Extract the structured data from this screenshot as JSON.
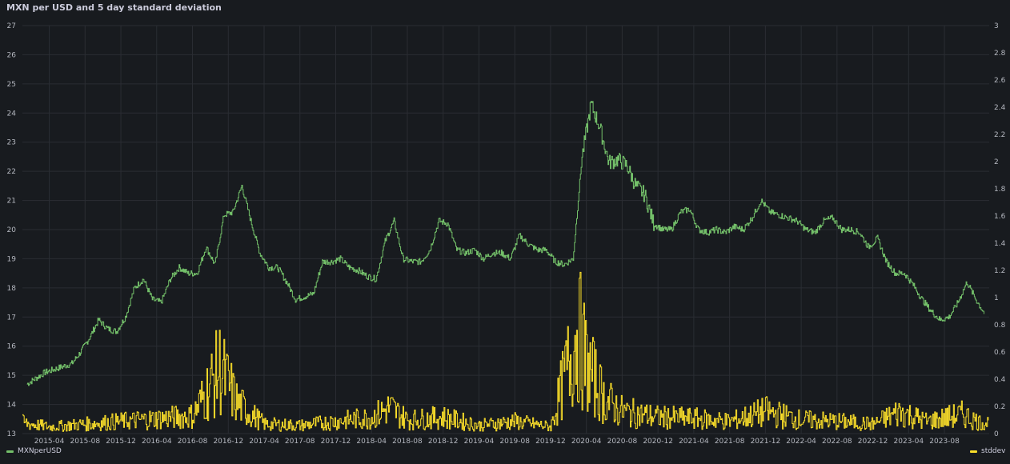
{
  "panel": {
    "title": "MXN per USD and 5 day standard deviation"
  },
  "legend": {
    "left_label": "MXNperUSD",
    "right_label": "stddev"
  },
  "colors": {
    "mxn": "#73bf69",
    "stddev": "#fade2a",
    "grid": "#2a2d33",
    "tick": "#b5b8c0"
  },
  "chart_data": {
    "type": "line",
    "title": "MXN per USD and 5 day standard deviation",
    "x_range": [
      "2015-01",
      "2023-12"
    ],
    "y_left": {
      "min": 13,
      "max": 27,
      "ticks": [
        13,
        14,
        15,
        16,
        17,
        18,
        19,
        20,
        21,
        22,
        23,
        24,
        25,
        26,
        27
      ]
    },
    "y_right": {
      "min": 0,
      "max": 3,
      "ticks": [
        "0",
        "0.2",
        "0.4",
        "0.6",
        "0.8",
        "1",
        "1.2",
        "1.4",
        "1.6",
        "1.8",
        "2",
        "2.2",
        "2.4",
        "2.6",
        "2.8",
        "3"
      ]
    },
    "x_ticks": [
      "2015-04",
      "2015-08",
      "2015-12",
      "2016-04",
      "2016-08",
      "2016-12",
      "2017-04",
      "2017-08",
      "2017-12",
      "2018-04",
      "2018-08",
      "2018-12",
      "2019-04",
      "2019-08",
      "2019-12",
      "2020-04",
      "2020-08",
      "2020-12",
      "2021-04",
      "2021-08",
      "2021-12",
      "2022-04",
      "2022-08",
      "2022-12",
      "2023-04",
      "2023-08"
    ],
    "grid": true,
    "legend_position": "bottom",
    "series": [
      {
        "name": "MXNperUSD",
        "axis": "left",
        "points": [
          [
            "2015-01",
            14.7
          ],
          [
            "2015-02",
            14.9
          ],
          [
            "2015-03",
            15.1
          ],
          [
            "2015-04",
            15.2
          ],
          [
            "2015-05",
            15.3
          ],
          [
            "2015-06",
            15.4
          ],
          [
            "2015-07",
            15.8
          ],
          [
            "2015-08",
            16.3
          ],
          [
            "2015-09",
            16.9
          ],
          [
            "2015-10",
            16.6
          ],
          [
            "2015-11",
            16.5
          ],
          [
            "2015-12",
            17.0
          ],
          [
            "2016-01",
            18.0
          ],
          [
            "2016-02",
            18.3
          ],
          [
            "2016-03",
            17.6
          ],
          [
            "2016-04",
            17.5
          ],
          [
            "2016-05",
            18.3
          ],
          [
            "2016-06",
            18.7
          ],
          [
            "2016-07",
            18.5
          ],
          [
            "2016-08",
            18.5
          ],
          [
            "2016-09",
            19.4
          ],
          [
            "2016-10",
            18.8
          ],
          [
            "2016-11",
            20.5
          ],
          [
            "2016-12",
            20.6
          ],
          [
            "2017-01",
            21.5
          ],
          [
            "2017-02",
            20.3
          ],
          [
            "2017-03",
            19.2
          ],
          [
            "2017-04",
            18.7
          ],
          [
            "2017-05",
            18.7
          ],
          [
            "2017-06",
            18.2
          ],
          [
            "2017-07",
            17.6
          ],
          [
            "2017-08",
            17.7
          ],
          [
            "2017-09",
            17.8
          ],
          [
            "2017-10",
            18.9
          ],
          [
            "2017-11",
            18.9
          ],
          [
            "2017-12",
            19.0
          ],
          [
            "2018-01",
            18.7
          ],
          [
            "2018-02",
            18.6
          ],
          [
            "2018-03",
            18.4
          ],
          [
            "2018-04",
            18.3
          ],
          [
            "2018-05",
            19.6
          ],
          [
            "2018-06",
            20.3
          ],
          [
            "2018-07",
            19.0
          ],
          [
            "2018-08",
            18.9
          ],
          [
            "2018-09",
            18.9
          ],
          [
            "2018-10",
            19.3
          ],
          [
            "2018-11",
            20.3
          ],
          [
            "2018-12",
            20.2
          ],
          [
            "2019-01",
            19.3
          ],
          [
            "2019-02",
            19.2
          ],
          [
            "2019-03",
            19.3
          ],
          [
            "2019-04",
            19.0
          ],
          [
            "2019-05",
            19.2
          ],
          [
            "2019-06",
            19.2
          ],
          [
            "2019-07",
            19.0
          ],
          [
            "2019-08",
            19.8
          ],
          [
            "2019-09",
            19.5
          ],
          [
            "2019-10",
            19.3
          ],
          [
            "2019-11",
            19.3
          ],
          [
            "2019-12",
            18.9
          ],
          [
            "2020-01",
            18.8
          ],
          [
            "2020-02",
            19.0
          ],
          [
            "2020-03",
            22.5
          ],
          [
            "2020-04",
            24.3
          ],
          [
            "2020-05",
            23.5
          ],
          [
            "2020-06",
            22.3
          ],
          [
            "2020-07",
            22.4
          ],
          [
            "2020-08",
            22.2
          ],
          [
            "2020-09",
            21.5
          ],
          [
            "2020-10",
            21.2
          ],
          [
            "2020-11",
            20.2
          ],
          [
            "2020-12",
            20.0
          ],
          [
            "2021-01",
            20.0
          ],
          [
            "2021-02",
            20.6
          ],
          [
            "2021-03",
            20.7
          ],
          [
            "2021-04",
            20.0
          ],
          [
            "2021-05",
            19.9
          ],
          [
            "2021-06",
            20.0
          ],
          [
            "2021-07",
            19.9
          ],
          [
            "2021-08",
            20.1
          ],
          [
            "2021-09",
            20.0
          ],
          [
            "2021-10",
            20.4
          ],
          [
            "2021-11",
            21.0
          ],
          [
            "2021-12",
            20.6
          ],
          [
            "2022-01",
            20.5
          ],
          [
            "2022-02",
            20.4
          ],
          [
            "2022-03",
            20.3
          ],
          [
            "2022-04",
            20.0
          ],
          [
            "2022-05",
            19.9
          ],
          [
            "2022-06",
            20.3
          ],
          [
            "2022-07",
            20.4
          ],
          [
            "2022-08",
            20.0
          ],
          [
            "2022-09",
            20.0
          ],
          [
            "2022-10",
            19.9
          ],
          [
            "2022-11",
            19.4
          ],
          [
            "2022-12",
            19.7
          ],
          [
            "2023-01",
            18.9
          ],
          [
            "2023-02",
            18.5
          ],
          [
            "2023-03",
            18.5
          ],
          [
            "2023-04",
            18.1
          ],
          [
            "2023-05",
            17.6
          ],
          [
            "2023-06",
            17.2
          ],
          [
            "2023-07",
            16.9
          ],
          [
            "2023-08",
            17.0
          ],
          [
            "2023-09",
            17.5
          ],
          [
            "2023-10",
            18.2
          ],
          [
            "2023-11",
            17.6
          ],
          [
            "2023-12",
            17.1
          ]
        ]
      },
      {
        "name": "stddev",
        "axis": "right",
        "points": [
          [
            "2015-01",
            0.08
          ],
          [
            "2015-04",
            0.05
          ],
          [
            "2015-08",
            0.07
          ],
          [
            "2015-12",
            0.09
          ],
          [
            "2016-04",
            0.11
          ],
          [
            "2016-08",
            0.13
          ],
          [
            "2016-11",
            0.48
          ],
          [
            "2017-01",
            0.22
          ],
          [
            "2017-04",
            0.07
          ],
          [
            "2017-08",
            0.06
          ],
          [
            "2017-12",
            0.09
          ],
          [
            "2018-04",
            0.12
          ],
          [
            "2018-06",
            0.19
          ],
          [
            "2018-08",
            0.1
          ],
          [
            "2018-12",
            0.12
          ],
          [
            "2019-04",
            0.06
          ],
          [
            "2019-08",
            0.09
          ],
          [
            "2019-12",
            0.05
          ],
          [
            "2020-03",
            0.76
          ],
          [
            "2020-04",
            0.5
          ],
          [
            "2020-06",
            0.25
          ],
          [
            "2020-08",
            0.16
          ],
          [
            "2020-12",
            0.12
          ],
          [
            "2021-04",
            0.11
          ],
          [
            "2021-08",
            0.09
          ],
          [
            "2021-12",
            0.16
          ],
          [
            "2022-04",
            0.1
          ],
          [
            "2022-08",
            0.09
          ],
          [
            "2022-12",
            0.07
          ],
          [
            "2023-03",
            0.16
          ],
          [
            "2023-06",
            0.09
          ],
          [
            "2023-10",
            0.14
          ],
          [
            "2023-12",
            0.08
          ]
        ]
      }
    ]
  }
}
